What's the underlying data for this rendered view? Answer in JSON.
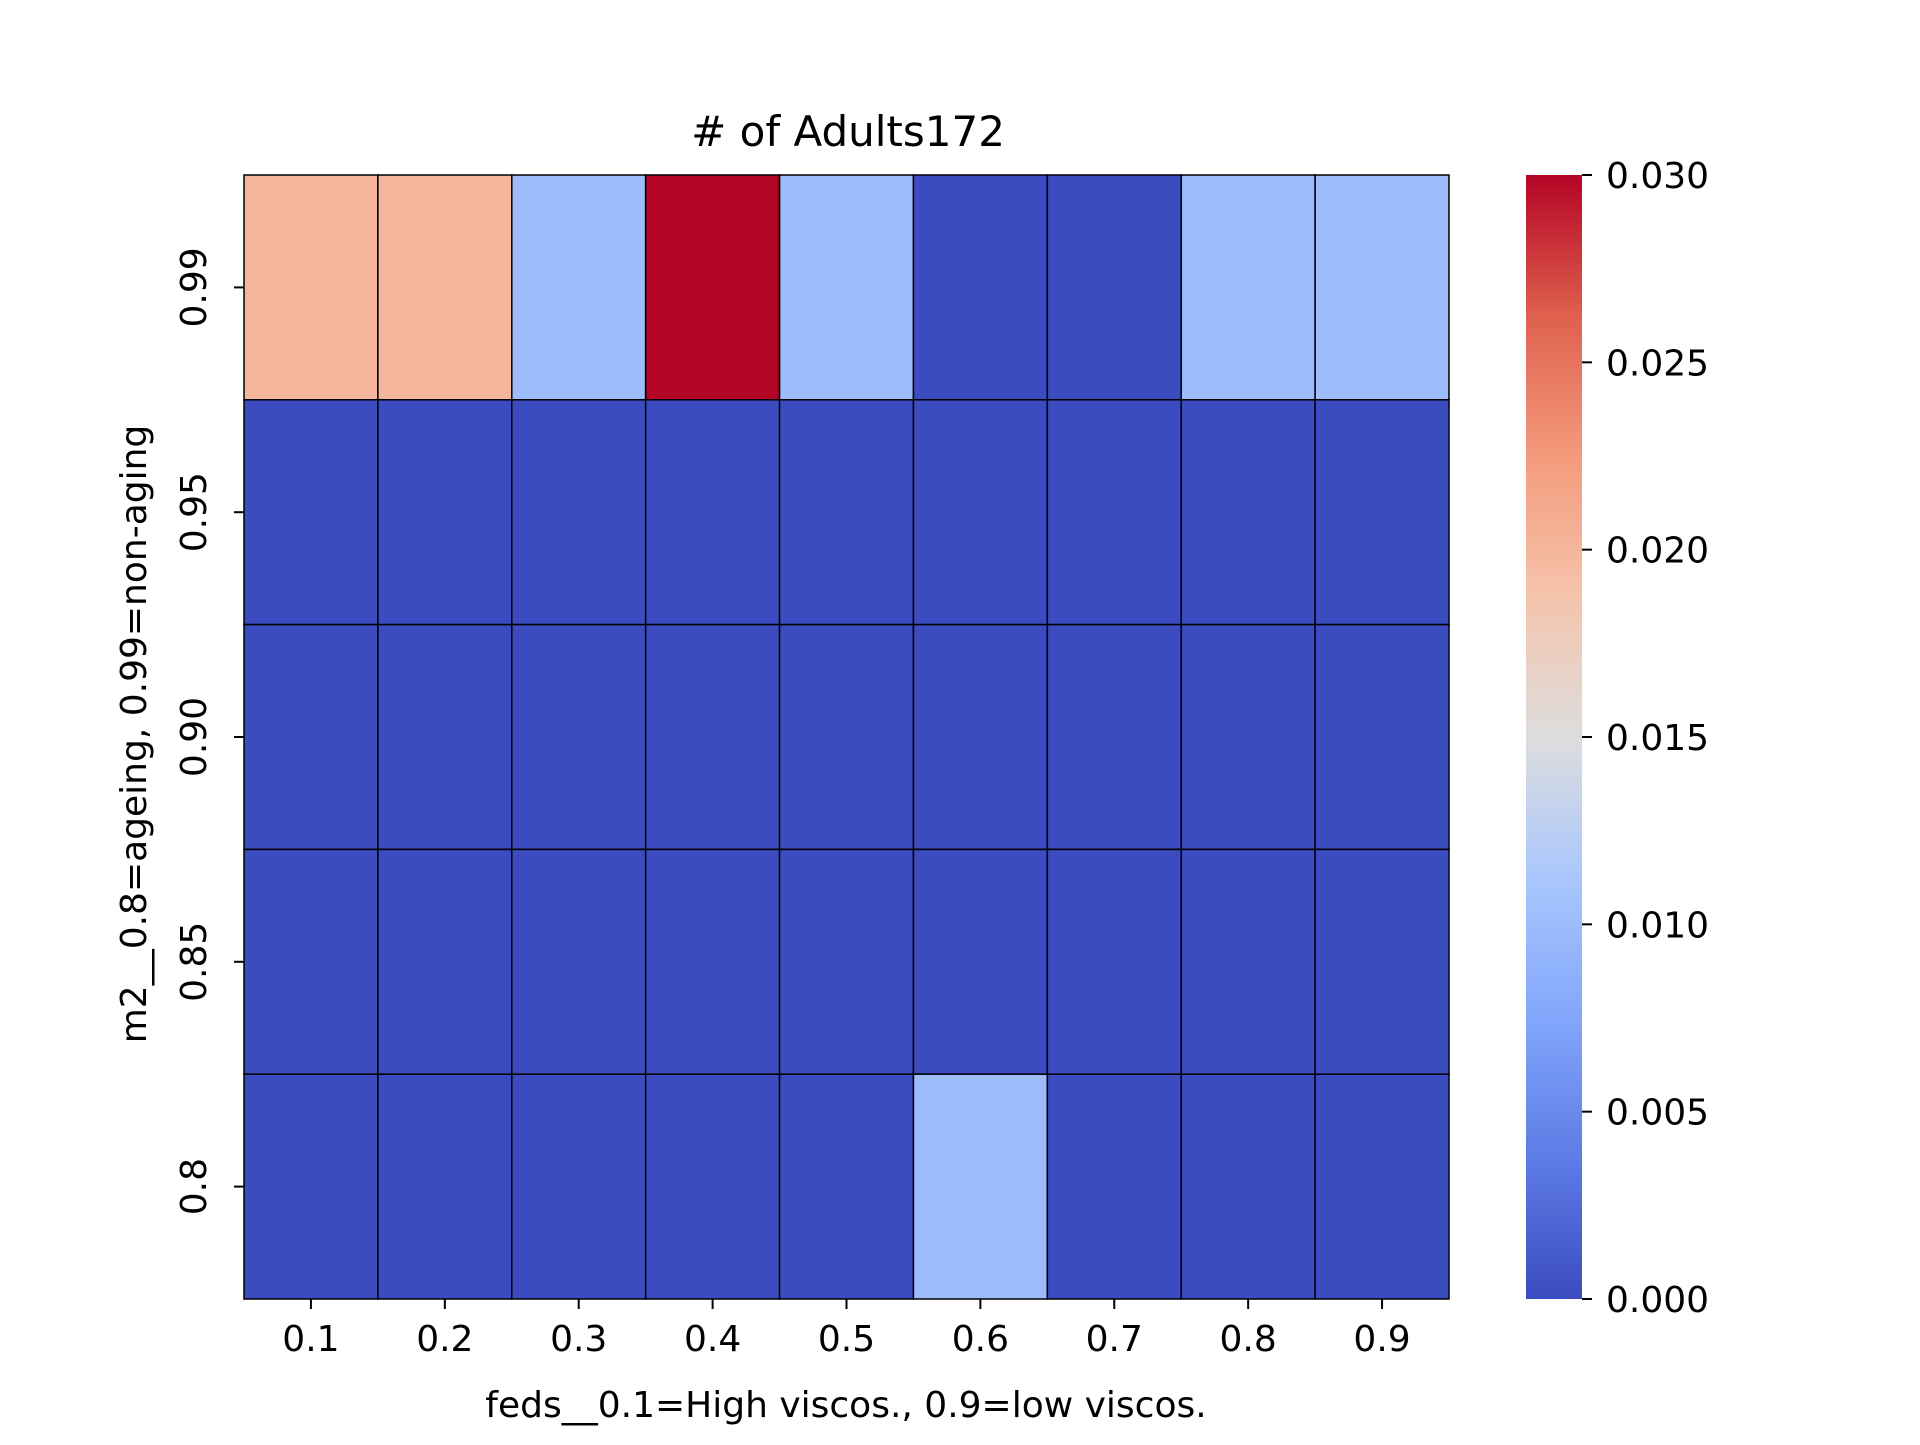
{
  "chart_data": {
    "type": "heatmap",
    "title": "# of Adults172",
    "xlabel": "feds__0.1=High viscos., 0.9=low viscos.",
    "ylabel": "m2__0.8=ageing, 0.99=non-aging",
    "x_categories": [
      "0.1",
      "0.2",
      "0.3",
      "0.4",
      "0.5",
      "0.6",
      "0.7",
      "0.8",
      "0.9"
    ],
    "y_categories": [
      "0.99",
      "0.95",
      "0.90",
      "0.85",
      "0.8"
    ],
    "values": [
      [
        0.02,
        0.02,
        0.01,
        0.03,
        0.01,
        0.0,
        0.0,
        0.01,
        0.01
      ],
      [
        0.0,
        0.0,
        0.0,
        0.0,
        0.0,
        0.0,
        0.0,
        0.0,
        0.0
      ],
      [
        0.0,
        0.0,
        0.0,
        0.0,
        0.0,
        0.0,
        0.0,
        0.0,
        0.0
      ],
      [
        0.0,
        0.0,
        0.0,
        0.0,
        0.0,
        0.0,
        0.0,
        0.0,
        0.0
      ],
      [
        0.0,
        0.0,
        0.0,
        0.0,
        0.0,
        0.01,
        0.0,
        0.0,
        0.0
      ]
    ],
    "colorbar": {
      "colormap": "coolwarm",
      "range": [
        0.0,
        0.03
      ],
      "ticks": [
        "0.000",
        "0.005",
        "0.010",
        "0.015",
        "0.020",
        "0.025",
        "0.030"
      ]
    },
    "cell_edge_color": "#000000",
    "colors": {
      "low": "#3b4cc0",
      "mid": "#dddddd",
      "high": "#b40426"
    }
  }
}
